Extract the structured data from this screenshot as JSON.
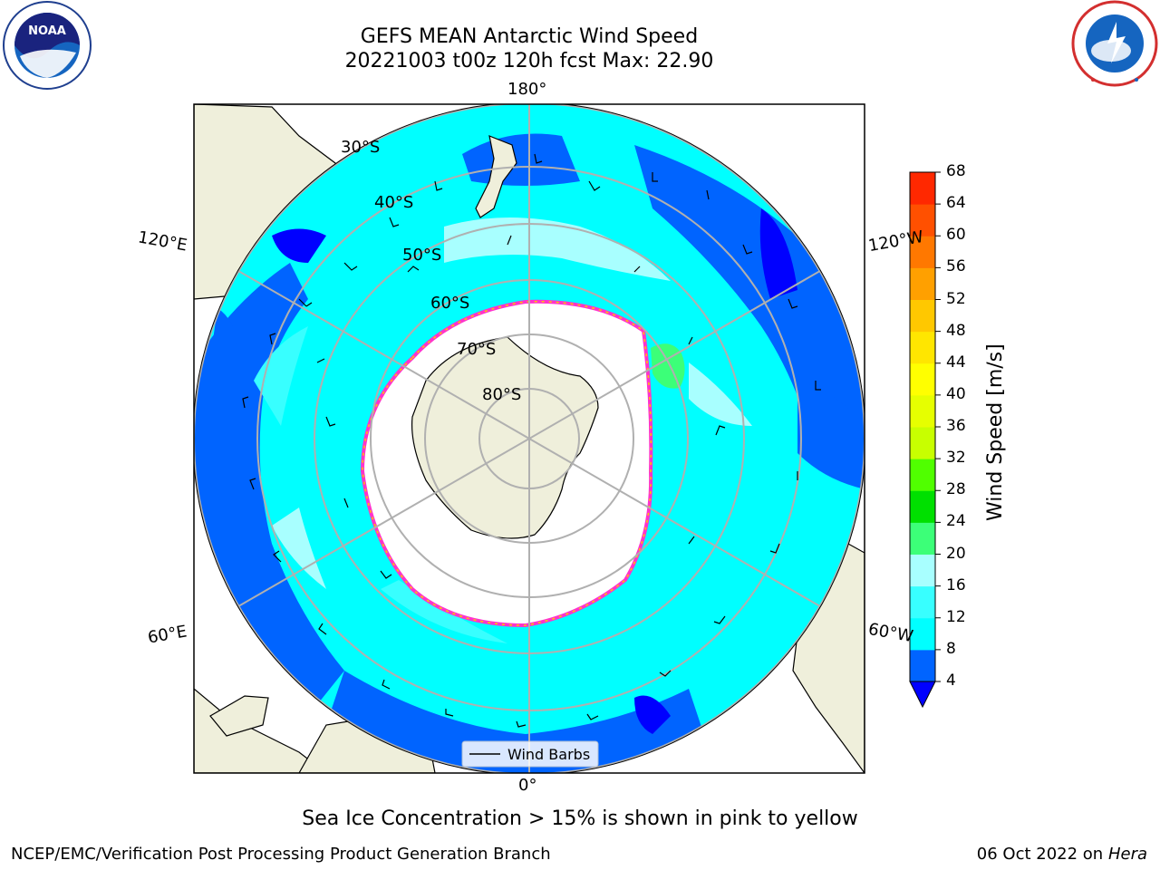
{
  "title": {
    "line1": "GEFS MEAN Antarctic Wind Speed",
    "line2": "20221003 t00z 120h fcst   Max: 22.90"
  },
  "longitude_labels": {
    "top": "180°",
    "bottom": "0°",
    "left_upper": "120°E",
    "left_lower": "60°E",
    "right_upper": "120°W",
    "right_lower": "60°W"
  },
  "latitude_labels": [
    "30°S",
    "40°S",
    "50°S",
    "60°S",
    "70°S",
    "80°S"
  ],
  "legend": {
    "label": "Wind Barbs"
  },
  "colorbar": {
    "title": "Wind Speed [m/s]",
    "ticks": [
      "4",
      "8",
      "12",
      "16",
      "20",
      "24",
      "28",
      "32",
      "36",
      "40",
      "44",
      "48",
      "52",
      "56",
      "60",
      "64",
      "68"
    ],
    "colors": [
      "#0064ff",
      "#00ffff",
      "#38ffff",
      "#a8ffff",
      "#3cff78",
      "#00e000",
      "#50ff00",
      "#c8ff00",
      "#e6ff00",
      "#ffff00",
      "#ffe600",
      "#ffc800",
      "#ffa000",
      "#ff7800",
      "#ff5000",
      "#ff2800",
      "#ff0000"
    ],
    "under_color": "#0000ff"
  },
  "caption": "Sea Ice Concentration > 15% is shown in pink to yellow",
  "footer": {
    "left": "NCEP/EMC/Verification Post Processing Product Generation Branch",
    "right_date": "06 Oct 2022 on ",
    "right_machine": "Hera"
  },
  "logos": {
    "left": "NOAA",
    "right": "NATIONAL WEATHER SERVICE"
  }
}
